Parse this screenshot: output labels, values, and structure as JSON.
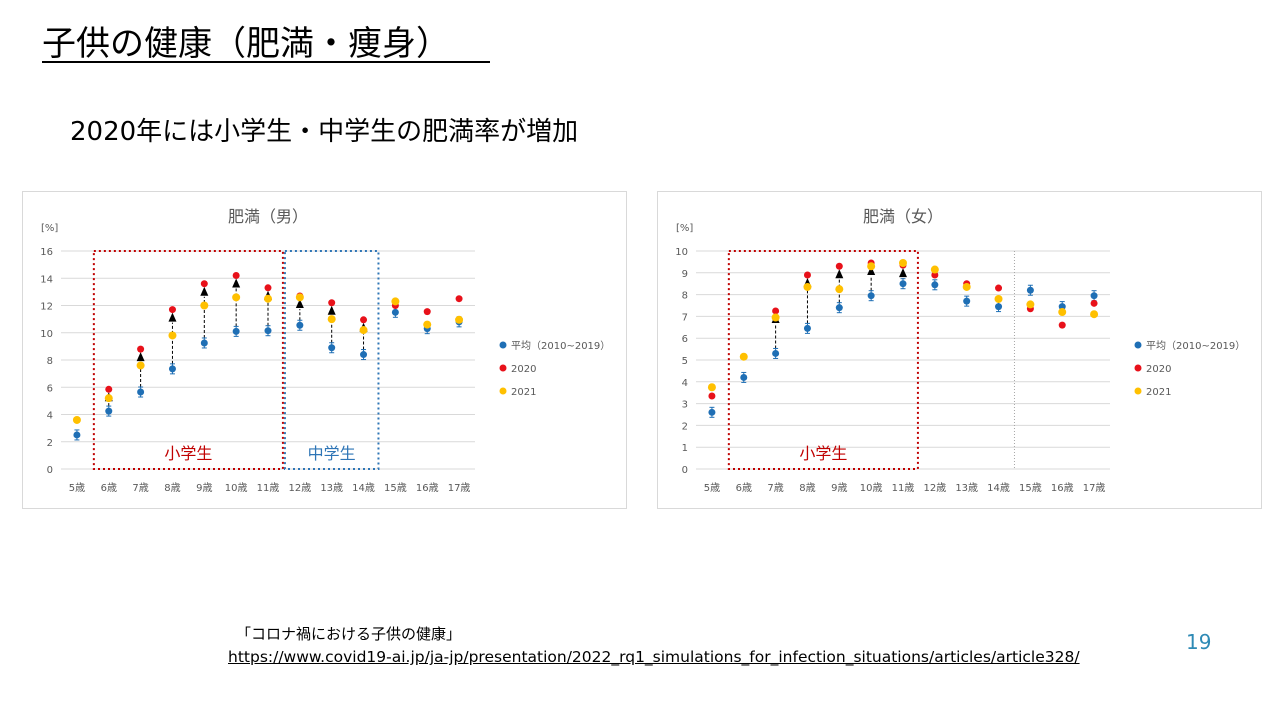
{
  "slide": {
    "title": "子供の健康（肥満・痩身）",
    "subtitle": "2020年には小学生・中学生の肥満率が増加",
    "source_label": "「コロナ禍における子供の健康」",
    "source_url": "https://www.covid19-ai.jp/ja-jp/presentation/2022_rq1_simulations_for_infection_situations/articles/article328/",
    "page_number": "19"
  },
  "colors": {
    "avg": "#1f6fb5",
    "y2020": "#e8111a",
    "y2021": "#ffc000",
    "arrow": "#000000",
    "elementary_box": "#c00000",
    "junior_box": "#2e75b6",
    "grid": "#d9d9d9",
    "text": "#595959"
  },
  "chart_data": [
    {
      "type": "scatter",
      "title": "肥満（男）",
      "ylabel": "[%]",
      "ylim": [
        0,
        16
      ],
      "yticks": [
        0,
        2,
        4,
        6,
        8,
        10,
        12,
        14,
        16
      ],
      "categories": [
        "5歳",
        "6歳",
        "7歳",
        "8歳",
        "9歳",
        "10歳",
        "11歳",
        "12歳",
        "13歳",
        "14歳",
        "15歳",
        "16歳",
        "17歳"
      ],
      "grid": true,
      "legend_position": "right",
      "series": [
        {
          "name": "平均（2010~2019）",
          "values": [
            2.5,
            4.25,
            5.65,
            7.35,
            9.25,
            10.1,
            10.15,
            10.55,
            8.9,
            8.4,
            11.5,
            10.3,
            10.8
          ]
        },
        {
          "name": "2020",
          "values": [
            null,
            5.85,
            8.8,
            11.7,
            13.6,
            14.2,
            13.3,
            12.7,
            12.2,
            10.95,
            12.0,
            11.55,
            12.5
          ]
        },
        {
          "name": "2021",
          "values": [
            3.6,
            5.2,
            7.6,
            9.8,
            12.0,
            12.6,
            12.5,
            12.6,
            11.0,
            10.2,
            12.3,
            10.6,
            10.95
          ]
        }
      ],
      "arrows_at": [
        1,
        2,
        3,
        4,
        5,
        6,
        7,
        8,
        9
      ],
      "annotations": [
        {
          "label": "小学生",
          "from": 1,
          "to": 6,
          "color": "elementary"
        },
        {
          "label": "中学生",
          "from": 7,
          "to": 9,
          "color": "junior"
        }
      ]
    },
    {
      "type": "scatter",
      "title": "肥満（女）",
      "ylabel": "[%]",
      "ylim": [
        0,
        10
      ],
      "yticks": [
        0,
        1,
        2,
        3,
        4,
        5,
        6,
        7,
        8,
        9,
        10
      ],
      "categories": [
        "5歳",
        "6歳",
        "7歳",
        "8歳",
        "9歳",
        "10歳",
        "11歳",
        "12歳",
        "13歳",
        "14歳",
        "15歳",
        "16歳",
        "17歳"
      ],
      "grid": true,
      "legend_position": "right",
      "series": [
        {
          "name": "平均（2010~2019）",
          "values": [
            2.6,
            4.2,
            5.3,
            6.45,
            7.4,
            7.95,
            8.5,
            8.45,
            7.7,
            7.45,
            8.2,
            7.45,
            7.95
          ]
        },
        {
          "name": "2020",
          "values": [
            3.35,
            null,
            7.25,
            8.9,
            9.3,
            9.45,
            9.35,
            8.9,
            8.5,
            8.3,
            7.35,
            6.6,
            7.6
          ]
        },
        {
          "name": "2021",
          "values": [
            3.75,
            5.15,
            6.95,
            8.35,
            8.25,
            9.3,
            9.45,
            9.15,
            8.35,
            7.8,
            7.55,
            7.2,
            7.1
          ]
        }
      ],
      "arrows_at": [
        1,
        2,
        3,
        4,
        5,
        6
      ],
      "annotations": [
        {
          "label": "小学生",
          "from": 1,
          "to": 6,
          "color": "elementary"
        }
      ],
      "divider_after": 9
    }
  ]
}
